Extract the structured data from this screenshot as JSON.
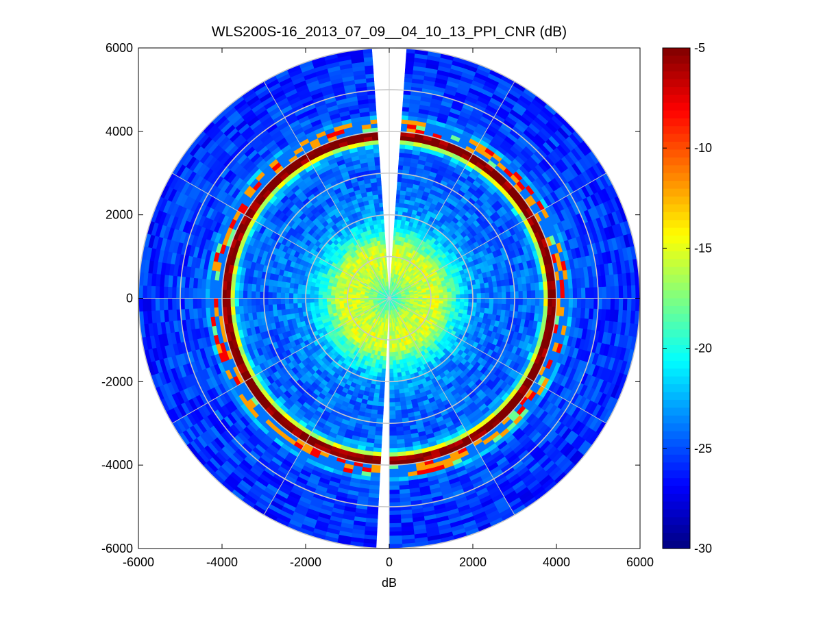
{
  "chart_data": {
    "type": "heatmap",
    "subtype": "polar-ppi",
    "title": "WLS200S-16_2013_07_09__04_10_13_PPI_CNR (dB)",
    "xlabel": "dB",
    "ylabel": "",
    "xlim": [
      -6000,
      6000
    ],
    "ylim": [
      -6000,
      6000
    ],
    "x_ticks": [
      -6000,
      -4000,
      -2000,
      0,
      2000,
      4000,
      6000
    ],
    "y_ticks": [
      -6000,
      -4000,
      -2000,
      0,
      2000,
      4000,
      6000
    ],
    "x_tick_labels": [
      "-6000",
      "-4000",
      "-2000",
      "0",
      "2000",
      "4000",
      "6000"
    ],
    "y_tick_labels": [
      "-6000",
      "-4000",
      "-2000",
      "0",
      "2000",
      "4000",
      "6000"
    ],
    "max_range": 6000,
    "polar_grid": {
      "range_rings": [
        1000,
        2000,
        3000,
        4000,
        5000,
        6000
      ],
      "spoke_angles_deg": [
        0,
        30,
        60,
        90,
        120,
        150,
        180,
        210,
        240,
        270,
        300,
        330
      ],
      "color": "#c8c8c8"
    },
    "missing_sector_azimuth_deg": [
      -4,
      4
    ],
    "colorbar": {
      "range": [
        -30,
        -5
      ],
      "ticks": [
        -5,
        -10,
        -15,
        -20,
        -25,
        -30
      ],
      "tick_labels": [
        "-5",
        "-10",
        "-15",
        "-20",
        "-25",
        "-30"
      ],
      "colormap": "jet"
    },
    "range_profile_m": [
      0,
      300,
      600,
      900,
      1200,
      1500,
      2000,
      2500,
      3000,
      3500,
      3700,
      3850,
      3950,
      4050,
      4200,
      4400,
      5000,
      6000
    ],
    "range_profile_cnr_db": [
      -20,
      -18,
      -16,
      -15.5,
      -15.5,
      -19,
      -23,
      -24,
      -24.5,
      -24.5,
      -21,
      -5,
      -5,
      -21,
      -16,
      -25,
      -25.5,
      -26
    ]
  }
}
